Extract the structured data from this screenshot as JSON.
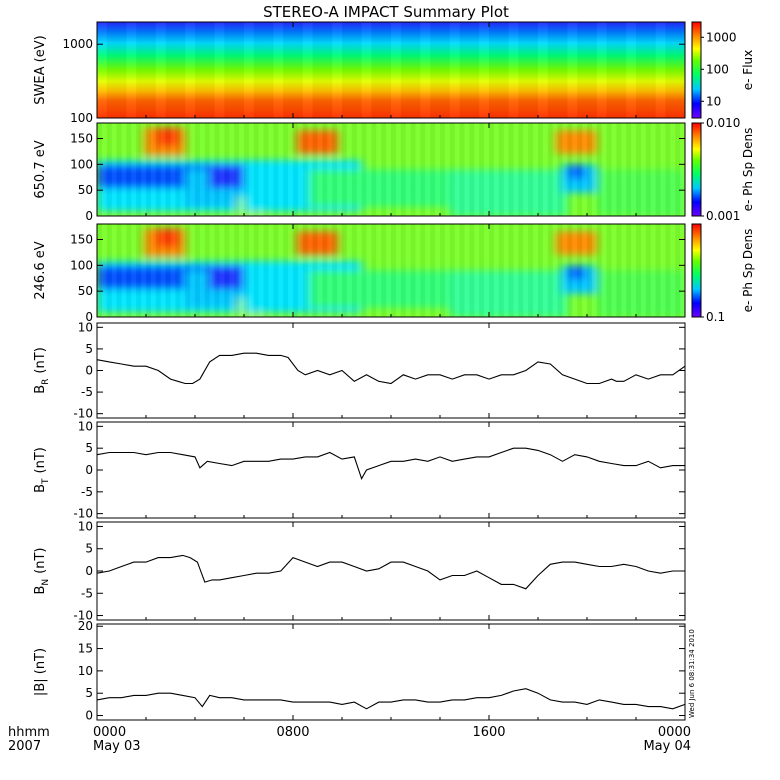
{
  "title": "STEREO-A IMPACT Summary Plot",
  "time_axis": {
    "label_line1": "hhmm",
    "label_line2": "2007",
    "ticks": [
      {
        "hhmm": "0000",
        "date": "May 03",
        "hour": 0
      },
      {
        "hhmm": "0800",
        "date": "",
        "hour": 8
      },
      {
        "hhmm": "1600",
        "date": "",
        "hour": 16
      },
      {
        "hhmm": "0000",
        "date": "May 04",
        "hour": 24
      }
    ]
  },
  "side_stamp": "Wed Jun  6 08:31:34 2010",
  "colors": {
    "line": "#000000",
    "frame": "#000000"
  },
  "chart_data": [
    {
      "type": "heatmap",
      "name": "swea",
      "ylabel": "SWEA (eV)",
      "yscale": "log",
      "ylim": [
        100,
        2000
      ],
      "yticks": [
        {
          "v": 1000,
          "label": "1000"
        },
        {
          "v": 100,
          "label": "100"
        }
      ],
      "colorbar": {
        "label": "e- Flux",
        "scale": "log",
        "range": [
          3,
          3000
        ],
        "ticks": [
          {
            "v": 1000,
            "label": "1000"
          },
          {
            "v": 100,
            "label": "100"
          },
          {
            "v": 10,
            "label": "10"
          }
        ]
      }
    },
    {
      "type": "heatmap",
      "name": "pad_650",
      "ylabel": "650.7 eV",
      "ylim": [
        0,
        180
      ],
      "yticks": [
        {
          "v": 0,
          "label": "0"
        },
        {
          "v": 50,
          "label": "50"
        },
        {
          "v": 100,
          "label": "100"
        },
        {
          "v": 150,
          "label": "150"
        }
      ],
      "colorbar": {
        "label": "e- Ph Sp Dens",
        "scale": "log",
        "range": [
          0.001,
          0.01
        ],
        "ticks": [
          {
            "v": 0.01,
            "label": "0.010"
          },
          {
            "v": 0.001,
            "label": "0.001"
          }
        ]
      }
    },
    {
      "type": "heatmap",
      "name": "pad_246",
      "ylabel": "246.6 eV",
      "ylim": [
        0,
        180
      ],
      "yticks": [
        {
          "v": 0,
          "label": "0"
        },
        {
          "v": 50,
          "label": "50"
        },
        {
          "v": 100,
          "label": "100"
        },
        {
          "v": 150,
          "label": "150"
        }
      ],
      "colorbar": {
        "label": "e- Ph Sp Dens",
        "scale": "log",
        "range": [
          0.1,
          1
        ],
        "ticks": [
          {
            "v": 0.1,
            "label": "0.1"
          }
        ]
      }
    },
    {
      "type": "line",
      "name": "br",
      "ylabel": "B",
      "ylabel_sub": "R",
      "ylabel_unit": "(nT)",
      "ylim": [
        -11,
        11
      ],
      "yticks": [
        {
          "v": 10,
          "label": "10"
        },
        {
          "v": 5,
          "label": "5"
        },
        {
          "v": 0,
          "label": "0"
        },
        {
          "v": -5,
          "label": "-5"
        },
        {
          "v": -10,
          "label": "-10"
        }
      ],
      "x": [
        0,
        0.5,
        1,
        1.5,
        2,
        2.5,
        3,
        3.3,
        3.6,
        3.9,
        4.2,
        4.3,
        4.6,
        5,
        5.5,
        6,
        6.5,
        7,
        7.5,
        7.8,
        8.2,
        8.5,
        9,
        9.5,
        10,
        10.5,
        11,
        11.5,
        12,
        12.5,
        13,
        13.5,
        14,
        14.5,
        15,
        15.5,
        16,
        16.5,
        17,
        17.5,
        18,
        18.5,
        19,
        19.5,
        20,
        20.5,
        21,
        21.2,
        21.5,
        22,
        22.5,
        23,
        23.5,
        24
      ],
      "y": [
        2.5,
        2,
        1.5,
        1,
        1,
        0,
        -2,
        -2.5,
        -3,
        -3,
        -2,
        -1,
        2,
        3.5,
        3.5,
        4,
        4,
        3.5,
        3.5,
        3,
        0,
        -1,
        0,
        -1,
        0,
        -2.5,
        -1,
        -2.5,
        -3,
        -1,
        -2,
        -1,
        -1,
        -2,
        -1,
        -1,
        -2,
        -1,
        -1,
        0,
        2,
        1.5,
        -1,
        -2,
        -3,
        -3,
        -2,
        -2.5,
        -2.5,
        -1,
        -2,
        -1,
        -1,
        1
      ]
    },
    {
      "type": "line",
      "name": "bt",
      "ylabel": "B",
      "ylabel_sub": "T",
      "ylabel_unit": "(nT)",
      "ylim": [
        -11,
        11
      ],
      "yticks": [
        {
          "v": 10,
          "label": "10"
        },
        {
          "v": 5,
          "label": "5"
        },
        {
          "v": 0,
          "label": "0"
        },
        {
          "v": -5,
          "label": "-5"
        },
        {
          "v": -10,
          "label": "-10"
        }
      ],
      "x": [
        0,
        0.5,
        1,
        1.5,
        2,
        2.5,
        3,
        3.5,
        4,
        4.2,
        4.5,
        5,
        5.5,
        6,
        6.5,
        7,
        7.5,
        8,
        8.5,
        9,
        9.5,
        10,
        10.5,
        10.8,
        11,
        11.5,
        12,
        12.5,
        13,
        13.5,
        14,
        14.5,
        15,
        15.5,
        16,
        16.5,
        17,
        17.5,
        18,
        18.5,
        19,
        19.5,
        20,
        20.5,
        21,
        21.5,
        22,
        22.5,
        23,
        23.5,
        24
      ],
      "y": [
        3.5,
        4,
        4,
        4,
        3.5,
        4,
        4,
        3.5,
        3,
        0.5,
        2,
        1.5,
        1,
        2,
        2,
        2,
        2.5,
        2.5,
        3,
        3,
        4,
        2.5,
        3,
        -2,
        0,
        1,
        2,
        2,
        2.5,
        2,
        3,
        2,
        2.5,
        3,
        3,
        4,
        5,
        5,
        4.5,
        3.5,
        2,
        3.5,
        3,
        2,
        1.5,
        1,
        1,
        2,
        0.5,
        1,
        1
      ]
    },
    {
      "type": "line",
      "name": "bn",
      "ylabel": "B",
      "ylabel_sub": "N",
      "ylabel_unit": "(nT)",
      "ylim": [
        -11,
        11
      ],
      "yticks": [
        {
          "v": 10,
          "label": "10"
        },
        {
          "v": 5,
          "label": "5"
        },
        {
          "v": 0,
          "label": "0"
        },
        {
          "v": -5,
          "label": "-5"
        },
        {
          "v": -10,
          "label": "-10"
        }
      ],
      "x": [
        0,
        0.5,
        1,
        1.5,
        2,
        2.5,
        3,
        3.5,
        3.8,
        4.1,
        4.4,
        4.7,
        5,
        5.5,
        6,
        6.5,
        7,
        7.5,
        8,
        8.5,
        9,
        9.5,
        10,
        10.5,
        11,
        11.5,
        12,
        12.5,
        13,
        13.5,
        14,
        14.5,
        15,
        15.5,
        16,
        16.5,
        17,
        17.5,
        18,
        18.5,
        19,
        19.5,
        20,
        20.5,
        21,
        21.5,
        22,
        22.5,
        23,
        23.5,
        24
      ],
      "y": [
        -0.5,
        0,
        1,
        2,
        2,
        3,
        3,
        3.5,
        3,
        2,
        -2.5,
        -2,
        -2,
        -1.5,
        -1,
        -0.5,
        -0.5,
        0,
        3,
        2,
        1,
        2,
        2,
        1,
        0,
        0.5,
        2,
        2,
        1,
        0,
        -2,
        -1,
        -1,
        0,
        -1.5,
        -3,
        -3,
        -4,
        -1,
        1.5,
        2,
        2,
        1.5,
        1,
        1,
        1.5,
        1,
        0,
        -0.5,
        0,
        0
      ]
    },
    {
      "type": "line",
      "name": "bmag",
      "ylabel": "|B| (nT)",
      "ylim": [
        -1,
        20.5
      ],
      "yticks": [
        {
          "v": 20,
          "label": "20"
        },
        {
          "v": 15,
          "label": "15"
        },
        {
          "v": 10,
          "label": "10"
        },
        {
          "v": 5,
          "label": "5"
        },
        {
          "v": 0,
          "label": "0"
        }
      ],
      "x": [
        0,
        0.5,
        1,
        1.5,
        2,
        2.5,
        3,
        3.5,
        4,
        4.3,
        4.6,
        5,
        5.5,
        6,
        6.5,
        7,
        7.5,
        8,
        8.5,
        9,
        9.5,
        10,
        10.5,
        11,
        11.5,
        12,
        12.5,
        13,
        13.5,
        14,
        14.5,
        15,
        15.5,
        16,
        16.5,
        17,
        17.5,
        18,
        18.5,
        19,
        19.5,
        20,
        20.5,
        21,
        21.5,
        22,
        22.5,
        23,
        23.5,
        24
      ],
      "y": [
        3.5,
        4,
        4,
        4.5,
        4.5,
        5,
        5,
        4.5,
        4,
        2,
        4.5,
        4,
        4,
        3.5,
        3.5,
        3.5,
        3.5,
        3,
        3,
        3,
        3,
        2.5,
        3,
        1.5,
        3,
        3,
        3.5,
        3.5,
        3,
        3,
        3.5,
        3.5,
        4,
        4,
        4.5,
        5.5,
        6,
        5,
        3.5,
        3,
        3,
        2.5,
        3.5,
        3,
        2.5,
        2.5,
        2,
        2,
        1.5,
        2.5
      ]
    }
  ]
}
